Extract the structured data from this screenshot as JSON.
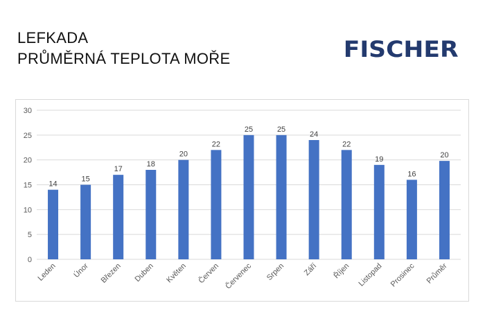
{
  "header": {
    "title_line1": "LEFKADA",
    "title_line2": "PRŮMĚRNÁ TEPLOTA MOŘE",
    "brand_logo_text": "FISCHER"
  },
  "colors": {
    "bar": "#4472c4",
    "grid": "#d9d9d9",
    "brand": "#233a6e"
  },
  "chart_data": {
    "type": "bar",
    "title": "",
    "xlabel": "",
    "ylabel": "",
    "categories": [
      "Leden",
      "Únor",
      "Březen",
      "Duben",
      "Květen",
      "Červen",
      "Červenec",
      "Srpen",
      "Září",
      "Říjen",
      "Listopad",
      "Prosinec",
      "Průměr"
    ],
    "values": [
      14,
      15,
      17,
      18,
      20,
      22,
      25,
      25,
      24,
      22,
      19,
      16,
      19.8
    ],
    "data_labels": [
      "14",
      "15",
      "17",
      "18",
      "20",
      "22",
      "25",
      "25",
      "24",
      "22",
      "19",
      "16",
      "20"
    ],
    "ylim": [
      0,
      30
    ],
    "yticks": [
      0,
      5,
      10,
      15,
      20,
      25,
      30
    ],
    "grid": true,
    "legend": "none"
  }
}
